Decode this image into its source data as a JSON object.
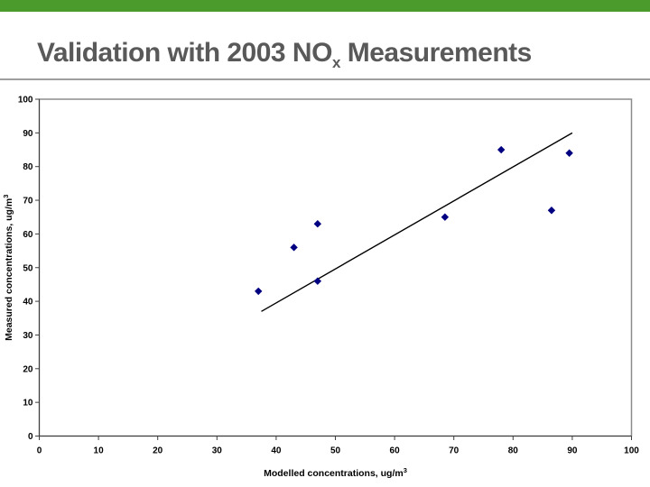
{
  "slide": {
    "title": {
      "prefix": "Validation with 2003 NO",
      "subscript": "x",
      "suffix": " Measurements"
    }
  },
  "colors": {
    "accent_bar": "#4a9b2c",
    "title_text": "#595959",
    "divider": "#9e9e9e",
    "plot_border": "#8c8c8c",
    "axis_line": "#404040",
    "tick_text": "#000000",
    "marker": "#000080",
    "trendline": "#000000"
  },
  "chart_data": {
    "type": "scatter",
    "title": "",
    "xlabel": "Modelled concentrations, ug/m",
    "xlabel_superscript": "3",
    "ylabel": "Measured concentrations, ug/m",
    "ylabel_superscript": "3",
    "xlim": [
      0,
      100
    ],
    "ylim": [
      0,
      100
    ],
    "xticks": [
      0,
      10,
      20,
      30,
      40,
      50,
      60,
      70,
      80,
      90,
      100
    ],
    "yticks": [
      0,
      10,
      20,
      30,
      40,
      50,
      60,
      70,
      80,
      90,
      100
    ],
    "grid": false,
    "legend": null,
    "marker": {
      "shape": "diamond",
      "color": "#000080",
      "size": 8
    },
    "points": [
      {
        "x": 37,
        "y": 43
      },
      {
        "x": 43,
        "y": 56
      },
      {
        "x": 47,
        "y": 46
      },
      {
        "x": 47,
        "y": 63
      },
      {
        "x": 68.5,
        "y": 65
      },
      {
        "x": 78,
        "y": 85
      },
      {
        "x": 86.5,
        "y": 67
      },
      {
        "x": 89.5,
        "y": 84
      }
    ],
    "trendline": {
      "x1": 37.5,
      "y1": 37,
      "x2": 90,
      "y2": 90
    }
  }
}
